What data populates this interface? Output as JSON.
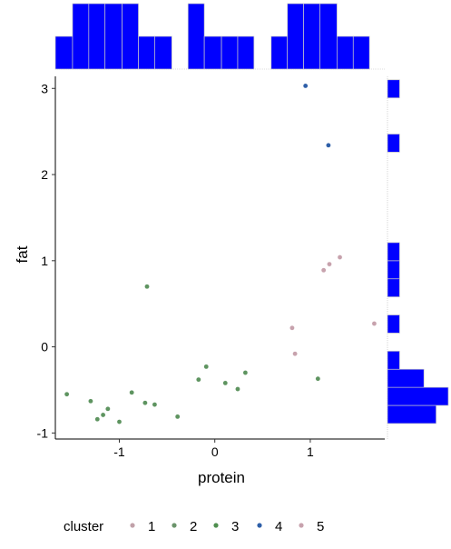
{
  "chart_data": {
    "type": "scatter",
    "subtype": "scatter with marginal histograms",
    "title": "",
    "xlabel": "protein",
    "ylabel": "fat",
    "xlim": [
      -1.67,
      1.78
    ],
    "ylim": [
      -1.07,
      3.14
    ],
    "x_ticks": [
      -1,
      0,
      1
    ],
    "x_tick_labels": [
      "-1",
      "0",
      "1"
    ],
    "y_ticks": [
      -1,
      0,
      1,
      2,
      3
    ],
    "y_tick_labels": [
      "-1",
      "0",
      "1",
      "2",
      "3"
    ],
    "grid": false,
    "legend": {
      "title": "cluster",
      "position": "bottom",
      "entries": [
        {
          "label": "1",
          "color": "#c1a1a9"
        },
        {
          "label": "2",
          "color": "#6b946b"
        },
        {
          "label": "3",
          "color": "#4f8f4f"
        },
        {
          "label": "4",
          "color": "#2e5fa8"
        },
        {
          "label": "5",
          "color": "#c7a2ad"
        }
      ]
    },
    "series": [
      {
        "name": "cluster 2",
        "color": "#5e9460",
        "points": [
          [
            -1.55,
            -0.55
          ],
          [
            -1.3,
            -0.63
          ],
          [
            -1.23,
            -0.84
          ],
          [
            -1.17,
            -0.79
          ],
          [
            -1.12,
            -0.72
          ],
          [
            -1.0,
            -0.87
          ],
          [
            -0.87,
            -0.53
          ],
          [
            -0.73,
            -0.65
          ],
          [
            -0.71,
            0.7
          ],
          [
            -0.63,
            -0.67
          ],
          [
            -0.39,
            -0.81
          ],
          [
            -0.17,
            -0.38
          ],
          [
            -0.09,
            -0.23
          ],
          [
            0.11,
            -0.42
          ],
          [
            0.24,
            -0.49
          ],
          [
            0.32,
            -0.3
          ],
          [
            1.08,
            -0.37
          ]
        ]
      },
      {
        "name": "cluster 4",
        "color": "#2e5fa8",
        "points": [
          [
            0.95,
            3.03
          ],
          [
            1.19,
            2.34
          ]
        ]
      },
      {
        "name": "cluster 5",
        "color": "#c7a2ad",
        "points": [
          [
            0.81,
            0.22
          ],
          [
            0.84,
            -0.08
          ],
          [
            1.14,
            0.89
          ],
          [
            1.2,
            0.96
          ],
          [
            1.31,
            1.04
          ],
          [
            1.67,
            0.27
          ]
        ]
      }
    ],
    "marginal_x_histogram": {
      "color": "#0000ff",
      "bins": [
        {
          "range": [
            -1.67,
            -1.49
          ],
          "count": 1
        },
        {
          "range": [
            -1.49,
            -1.32
          ],
          "count": 2
        },
        {
          "range": [
            -1.32,
            -1.15
          ],
          "count": 2
        },
        {
          "range": [
            -1.15,
            -0.97
          ],
          "count": 2
        },
        {
          "range": [
            -0.97,
            -0.8
          ],
          "count": 2
        },
        {
          "range": [
            -0.8,
            -0.63
          ],
          "count": 1
        },
        {
          "range": [
            -0.63,
            -0.45
          ],
          "count": 1
        },
        {
          "range": [
            -0.45,
            -0.28
          ],
          "count": 0
        },
        {
          "range": [
            -0.28,
            -0.11
          ],
          "count": 2
        },
        {
          "range": [
            -0.11,
            0.07
          ],
          "count": 1
        },
        {
          "range": [
            0.07,
            0.24
          ],
          "count": 1
        },
        {
          "range": [
            0.24,
            0.41
          ],
          "count": 1
        },
        {
          "range": [
            0.41,
            0.59
          ],
          "count": 0
        },
        {
          "range": [
            0.59,
            0.76
          ],
          "count": 1
        },
        {
          "range": [
            0.76,
            0.93
          ],
          "count": 2
        },
        {
          "range": [
            0.93,
            1.1
          ],
          "count": 2
        },
        {
          "range": [
            1.1,
            1.28
          ],
          "count": 2
        },
        {
          "range": [
            1.28,
            1.45
          ],
          "count": 1
        },
        {
          "range": [
            1.45,
            1.62
          ],
          "count": 1
        }
      ]
    },
    "marginal_y_histogram": {
      "color": "#0000ff",
      "bins": [
        {
          "range": [
            -0.89,
            -0.68
          ],
          "count": 4
        },
        {
          "range": [
            -0.68,
            -0.47
          ],
          "count": 5
        },
        {
          "range": [
            -0.47,
            -0.26
          ],
          "count": 3
        },
        {
          "range": [
            -0.26,
            -0.05
          ],
          "count": 1
        },
        {
          "range": [
            -0.05,
            0.16
          ],
          "count": 0
        },
        {
          "range": [
            0.16,
            0.37
          ],
          "count": 1
        },
        {
          "range": [
            0.37,
            0.58
          ],
          "count": 0
        },
        {
          "range": [
            0.58,
            0.79
          ],
          "count": 1
        },
        {
          "range": [
            0.79,
            1.0
          ],
          "count": 1
        },
        {
          "range": [
            1.0,
            1.21
          ],
          "count": 1
        },
        {
          "range": [
            1.21,
            1.42
          ],
          "count": 0
        },
        {
          "range": [
            1.42,
            1.63
          ],
          "count": 0
        },
        {
          "range": [
            1.63,
            1.84
          ],
          "count": 0
        },
        {
          "range": [
            1.84,
            2.05
          ],
          "count": 0
        },
        {
          "range": [
            2.05,
            2.26
          ],
          "count": 0
        },
        {
          "range": [
            2.26,
            2.47
          ],
          "count": 1
        },
        {
          "range": [
            2.47,
            2.68
          ],
          "count": 0
        },
        {
          "range": [
            2.68,
            2.89
          ],
          "count": 0
        },
        {
          "range": [
            2.89,
            3.1
          ],
          "count": 1
        }
      ]
    }
  }
}
